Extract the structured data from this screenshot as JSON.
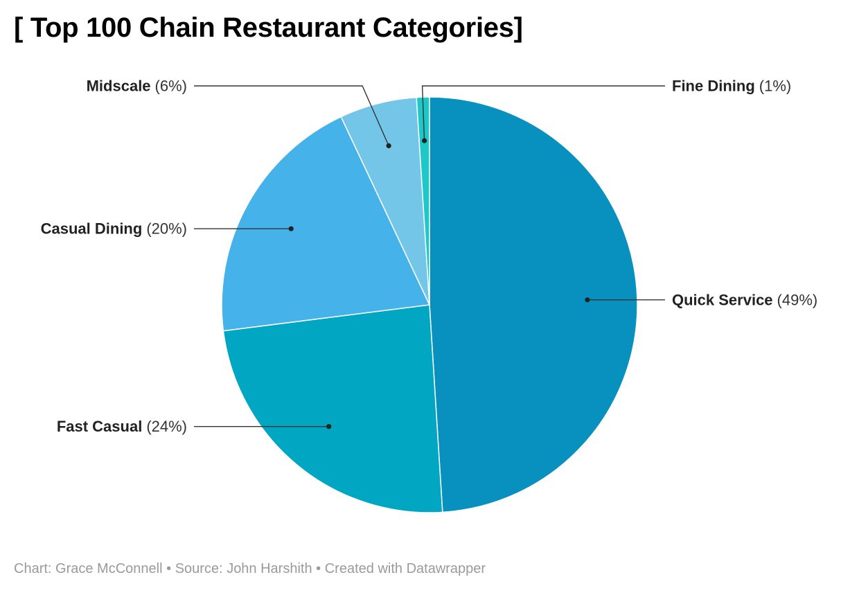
{
  "title": "[ Top 100 Chain Restaurant Categories]",
  "footer": {
    "credit_label": "Chart:",
    "credit_name": "Grace McConnell",
    "source_label": "Source:",
    "source_name": "John Harshith",
    "created_with": "Created with Datawrapper",
    "separator": "•"
  },
  "chart_data": {
    "type": "pie",
    "title": "[ Top 100 Chain Restaurant Categories]",
    "start_angle_deg": 0,
    "direction": "clockwise",
    "slices": [
      {
        "name": "Quick Service",
        "value": 49,
        "label": "(49%)",
        "color": "#0891be",
        "label_side": "right"
      },
      {
        "name": "Fast Casual",
        "value": 24,
        "label": "(24%)",
        "color": "#00a6c2",
        "label_side": "left"
      },
      {
        "name": "Casual Dining",
        "value": 20,
        "label": "(20%)",
        "color": "#45b2ea",
        "label_side": "left"
      },
      {
        "name": "Midscale",
        "value": 6,
        "label": "(6%)",
        "color": "#74c6e8",
        "label_side": "left"
      },
      {
        "name": "Fine Dining",
        "value": 1,
        "label": "(1%)",
        "color": "#1ec8c8",
        "label_side": "right"
      }
    ]
  }
}
